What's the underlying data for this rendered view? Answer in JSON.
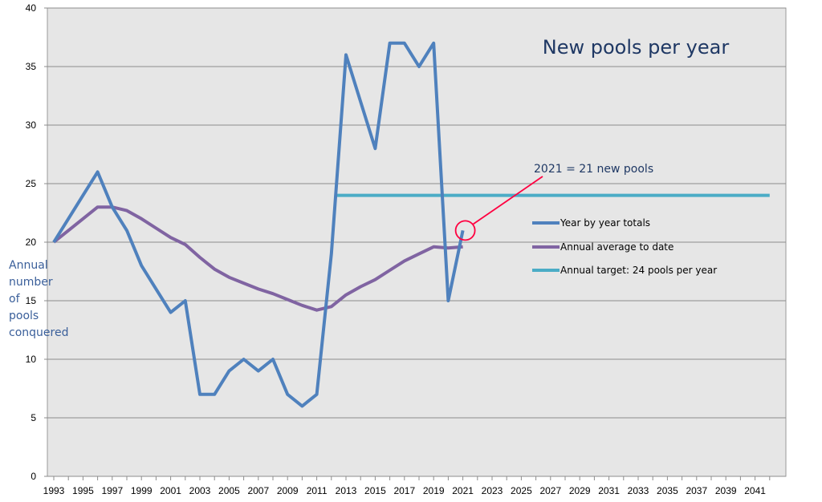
{
  "chart_data": {
    "type": "line",
    "title": "New pools per year",
    "ylabel": "Annual\nnumber\nof\npools\nconquered",
    "xlabel": "",
    "xlim": [
      1993,
      2042
    ],
    "ylim": [
      0,
      40
    ],
    "yticks": [
      0,
      5,
      10,
      15,
      20,
      25,
      30,
      35,
      40
    ],
    "xticks": [
      "1993",
      "1995",
      "1997",
      "1999",
      "2001",
      "2003",
      "2005",
      "2007",
      "2009",
      "2011",
      "2013",
      "2015",
      "2017",
      "2019",
      "2021",
      "2023",
      "2025",
      "2027",
      "2029",
      "2031",
      "2033",
      "2035",
      "2037",
      "2039",
      "2041"
    ],
    "grid": "horizontal",
    "legend_position": "right",
    "series": [
      {
        "name": "Year by year totals",
        "color": "#4f81bd",
        "x": [
          1993,
          1994,
          1995,
          1996,
          1997,
          1998,
          1999,
          2000,
          2001,
          2002,
          2003,
          2004,
          2005,
          2006,
          2007,
          2008,
          2009,
          2010,
          2011,
          2012,
          2013,
          2014,
          2015,
          2016,
          2017,
          2018,
          2019,
          2020,
          2021
        ],
        "values": [
          20,
          22,
          24,
          26,
          23,
          21,
          18,
          16,
          14,
          15,
          7,
          7,
          9,
          10,
          9,
          10,
          7,
          6,
          7,
          19,
          36,
          32,
          28,
          37,
          37,
          35,
          37,
          15,
          21
        ]
      },
      {
        "name": "Annual average to date",
        "color": "#8064a2",
        "x": [
          1993,
          1994,
          1995,
          1996,
          1997,
          1998,
          1999,
          2000,
          2001,
          2002,
          2003,
          2004,
          2005,
          2006,
          2007,
          2008,
          2009,
          2010,
          2011,
          2012,
          2013,
          2014,
          2015,
          2016,
          2017,
          2018,
          2019,
          2020,
          2021
        ],
        "values": [
          20,
          21,
          22,
          23,
          23,
          22.7,
          22,
          21.2,
          20.4,
          19.8,
          18.7,
          17.7,
          17,
          16.5,
          16,
          15.6,
          15.1,
          14.6,
          14.2,
          14.5,
          15.5,
          16.2,
          16.8,
          17.6,
          18.4,
          19,
          19.6,
          19.5,
          19.6
        ]
      },
      {
        "name": "Annual target: 24 pools per year",
        "color": "#4bacc6",
        "x": [
          2012.3,
          2042
        ],
        "values": [
          24,
          24
        ]
      }
    ],
    "annotations": [
      {
        "text": "2021 = 21 new pools",
        "x": 2021,
        "y": 21,
        "color": "#ff0040"
      }
    ]
  }
}
